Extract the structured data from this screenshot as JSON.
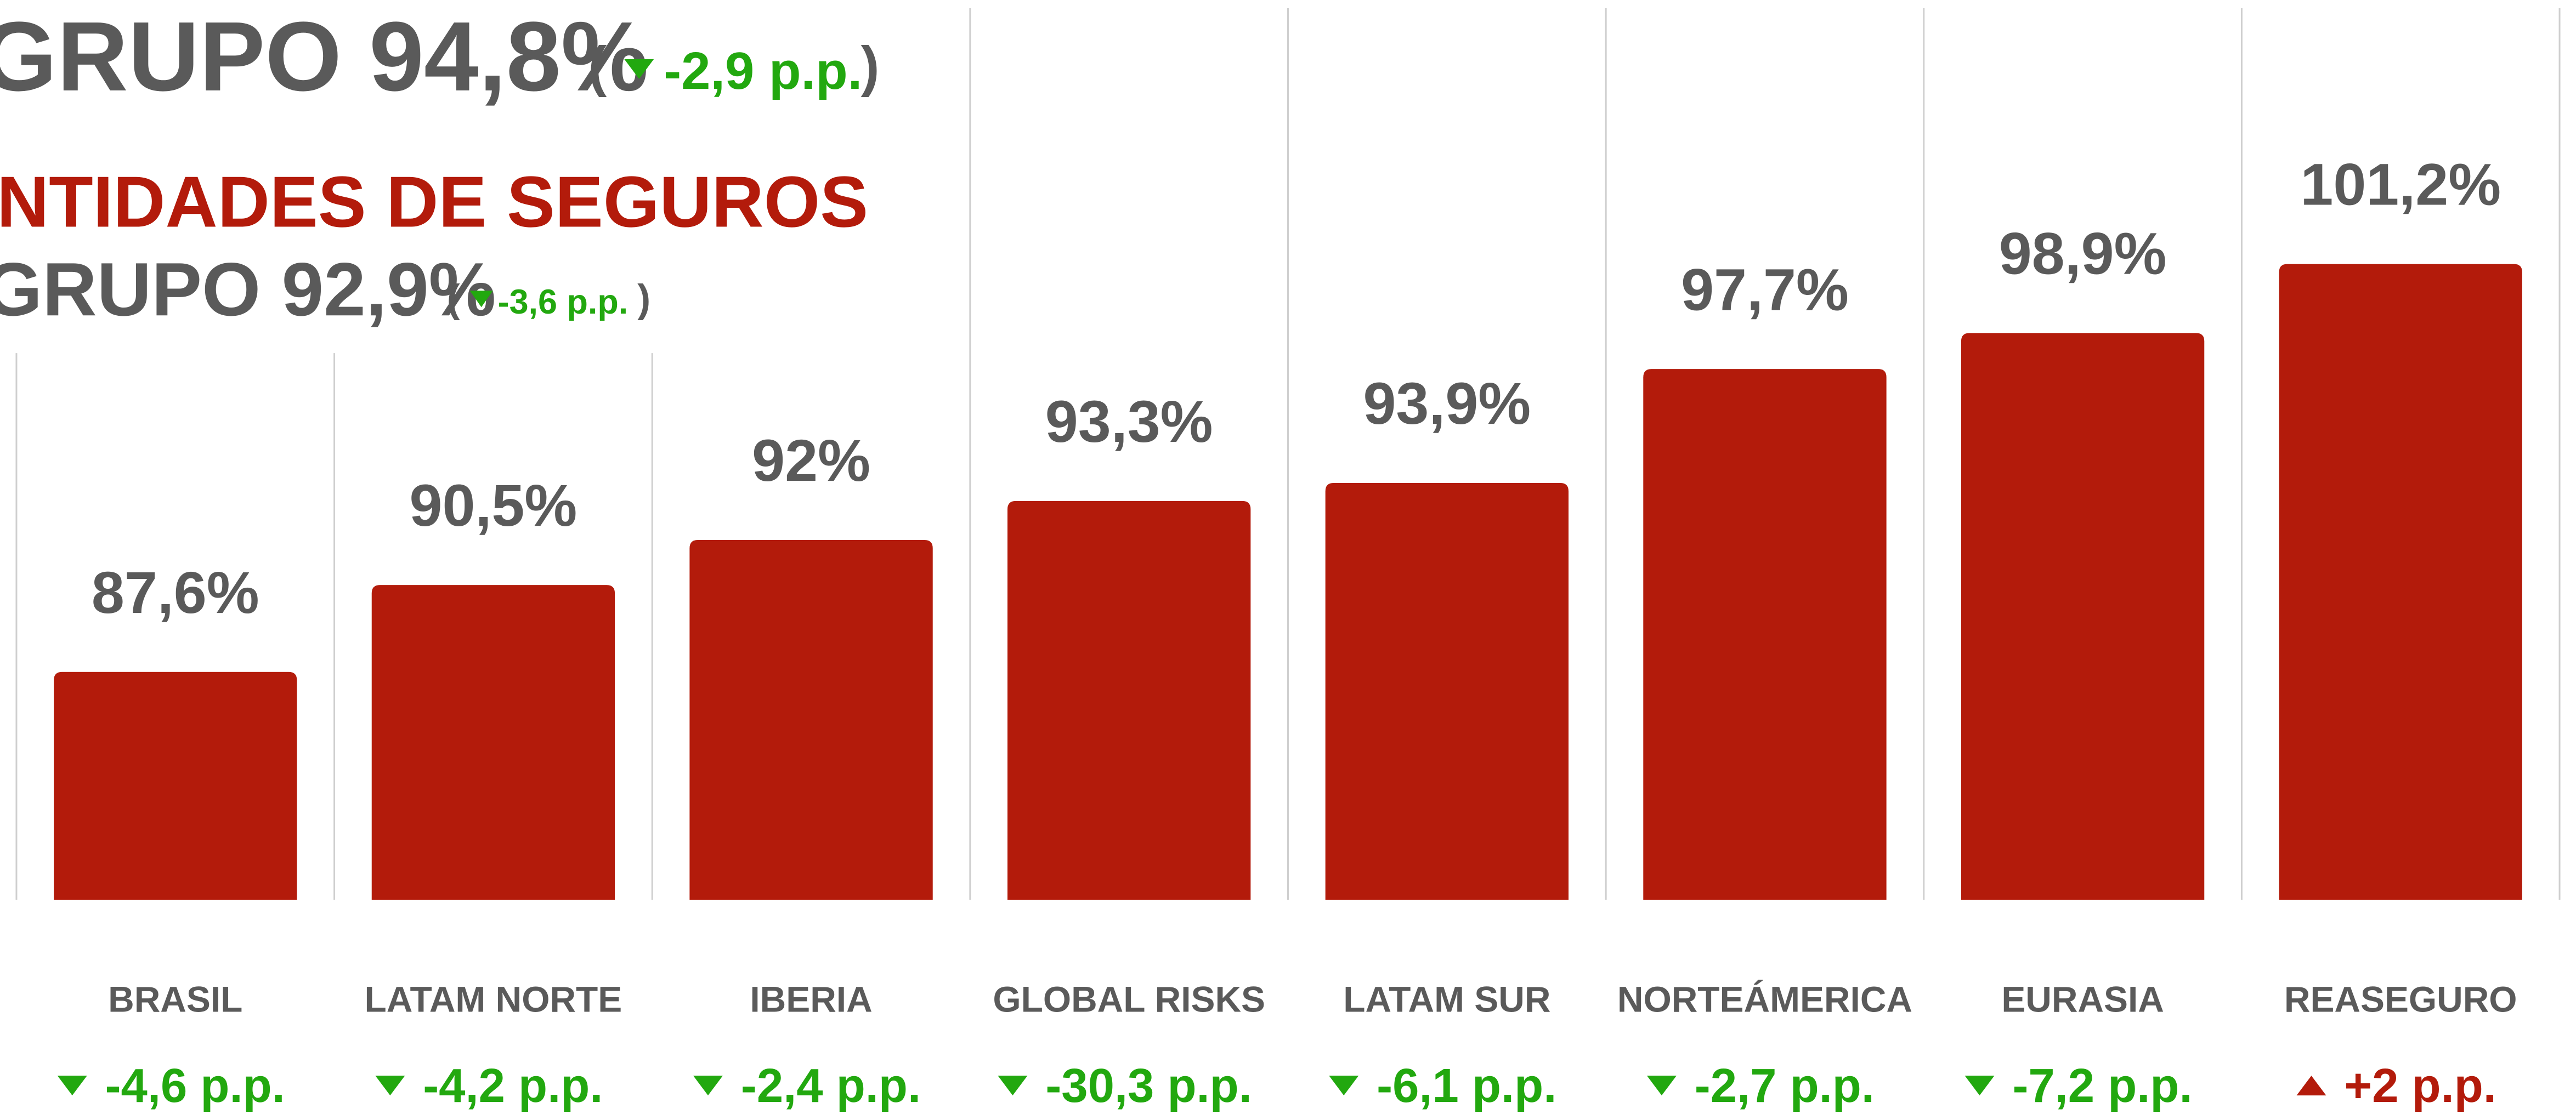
{
  "header": {
    "group_total": "GRUPO 94,8%",
    "group_change": "-2,9 p.p.",
    "subtitle": "NTIDADES DE SEGUROS",
    "insurance_total": "GRUPO 92,9%",
    "insurance_change": "-3,6 p.p."
  },
  "chart_data": {
    "type": "bar",
    "categories": [
      "BRASIL",
      "LATAM NORTE",
      "IBERIA",
      "GLOBAL RISKS",
      "LATAM SUR",
      "NORTEÁMERICA",
      "EURASIA",
      "REASEGURO"
    ],
    "values": [
      87.6,
      90.5,
      92,
      93.3,
      93.9,
      97.7,
      98.9,
      101.2
    ],
    "value_labels": [
      "87,6%",
      "90,5%",
      "92%",
      "93,3%",
      "93,9%",
      "97,7%",
      "98,9%",
      "101,2%"
    ],
    "changes": [
      -4.6,
      -4.2,
      -2.4,
      -30.3,
      -6.1,
      -2.7,
      -7.2,
      2
    ],
    "change_labels": [
      "-4,6 p.p.",
      "-4,2 p.p.",
      "-2,4 p.p.",
      "-30,3 p.p.",
      "-6,1 p.p.",
      "-2,7 p.p.",
      "-7,2 p.p.",
      "+2 p.p."
    ],
    "color": "#b31b0b",
    "down_color": "#22a80f",
    "up_color": "#b31b0b",
    "ylim": [
      80,
      110
    ]
  }
}
